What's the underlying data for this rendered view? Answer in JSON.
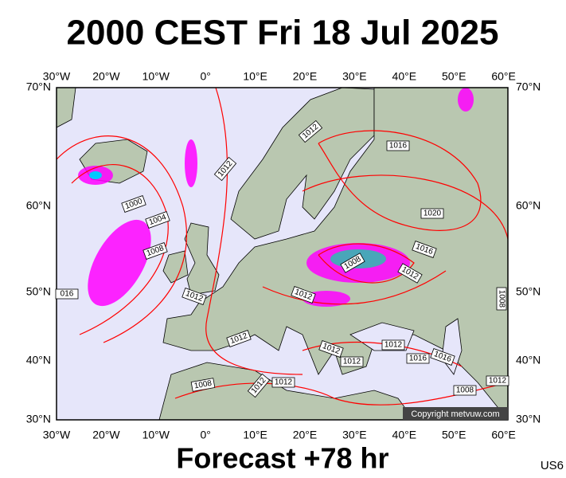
{
  "header": {
    "title": "2000 CEST Fri 18 Jul 2025"
  },
  "map": {
    "lon_labels": [
      "30°W",
      "20°W",
      "10°W",
      "0°",
      "10°E",
      "20°E",
      "30°E",
      "40°E",
      "50°E",
      "60°E"
    ],
    "lat_labels": [
      "70°N",
      "60°N",
      "50°N",
      "40°N",
      "30°N"
    ],
    "isobar_labels": [
      "1012",
      "1000",
      "1004",
      "1008",
      "1012",
      "016",
      "1012",
      "1016",
      "1020",
      "1016",
      "1008",
      "1012",
      "1012",
      "1012",
      "1012",
      "1012",
      "1012",
      "1016",
      "1016",
      "1008",
      "1012",
      "1012",
      "1008",
      "1012",
      "1008"
    ],
    "copyright": "Copyright metvuw.com"
  },
  "footer": {
    "forecast": "Forecast +78 hr",
    "code": "US6"
  }
}
